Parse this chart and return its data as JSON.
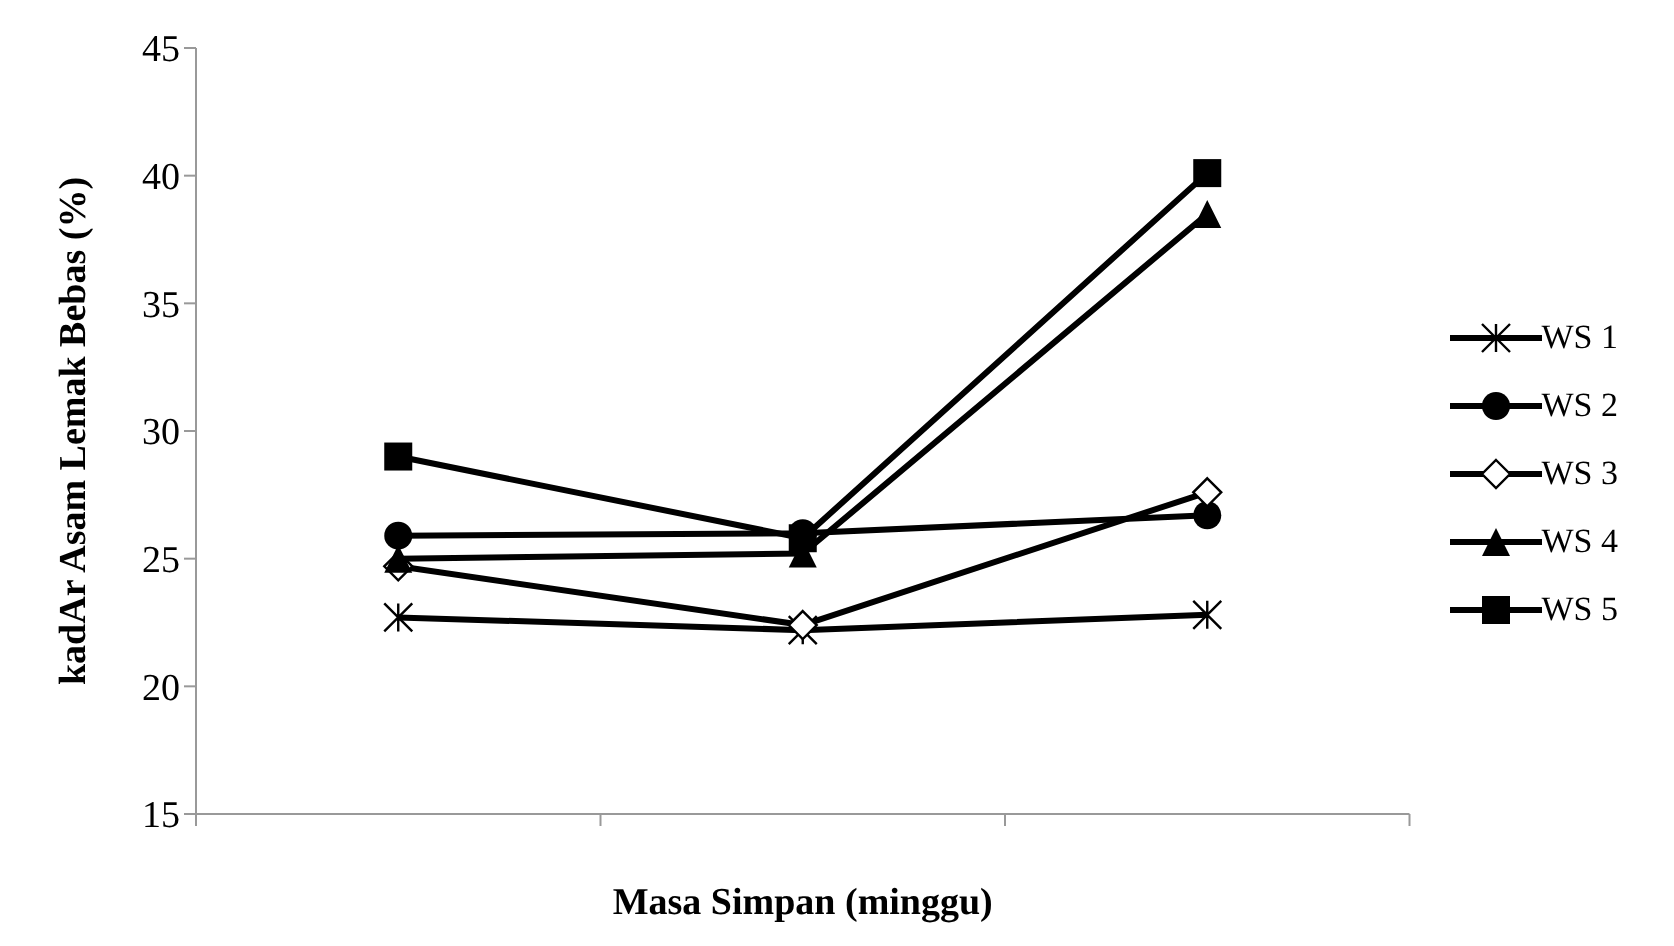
{
  "chart_data": {
    "type": "line",
    "xlabel": "Masa Simpan (minggu)",
    "ylabel": "kadAr Asam Lemak Bebas (%)",
    "categories": [
      null,
      null,
      null
    ],
    "ylim": [
      15,
      45
    ],
    "yticks": [
      15,
      20,
      25,
      30,
      35,
      40,
      45
    ],
    "legend": "right",
    "tick_labels": "y",
    "line_style": "solid",
    "series": [
      {
        "name": "WS 1",
        "color": "#000000",
        "marker": "cross",
        "values": [
          22.7,
          22.2,
          22.8
        ]
      },
      {
        "name": "WS 2",
        "color": "#000000",
        "marker": "circle",
        "values": [
          25.9,
          26.0,
          26.7
        ]
      },
      {
        "name": "WS 3",
        "color": "#000000",
        "marker": "diamond",
        "values": [
          24.7,
          22.4,
          27.6
        ]
      },
      {
        "name": "WS 4",
        "color": "#000000",
        "marker": "triangle",
        "values": [
          25.0,
          25.2,
          38.5
        ]
      },
      {
        "name": "WS 5",
        "color": "#000000",
        "marker": "square",
        "values": [
          29.0,
          25.8,
          40.1
        ]
      }
    ]
  }
}
